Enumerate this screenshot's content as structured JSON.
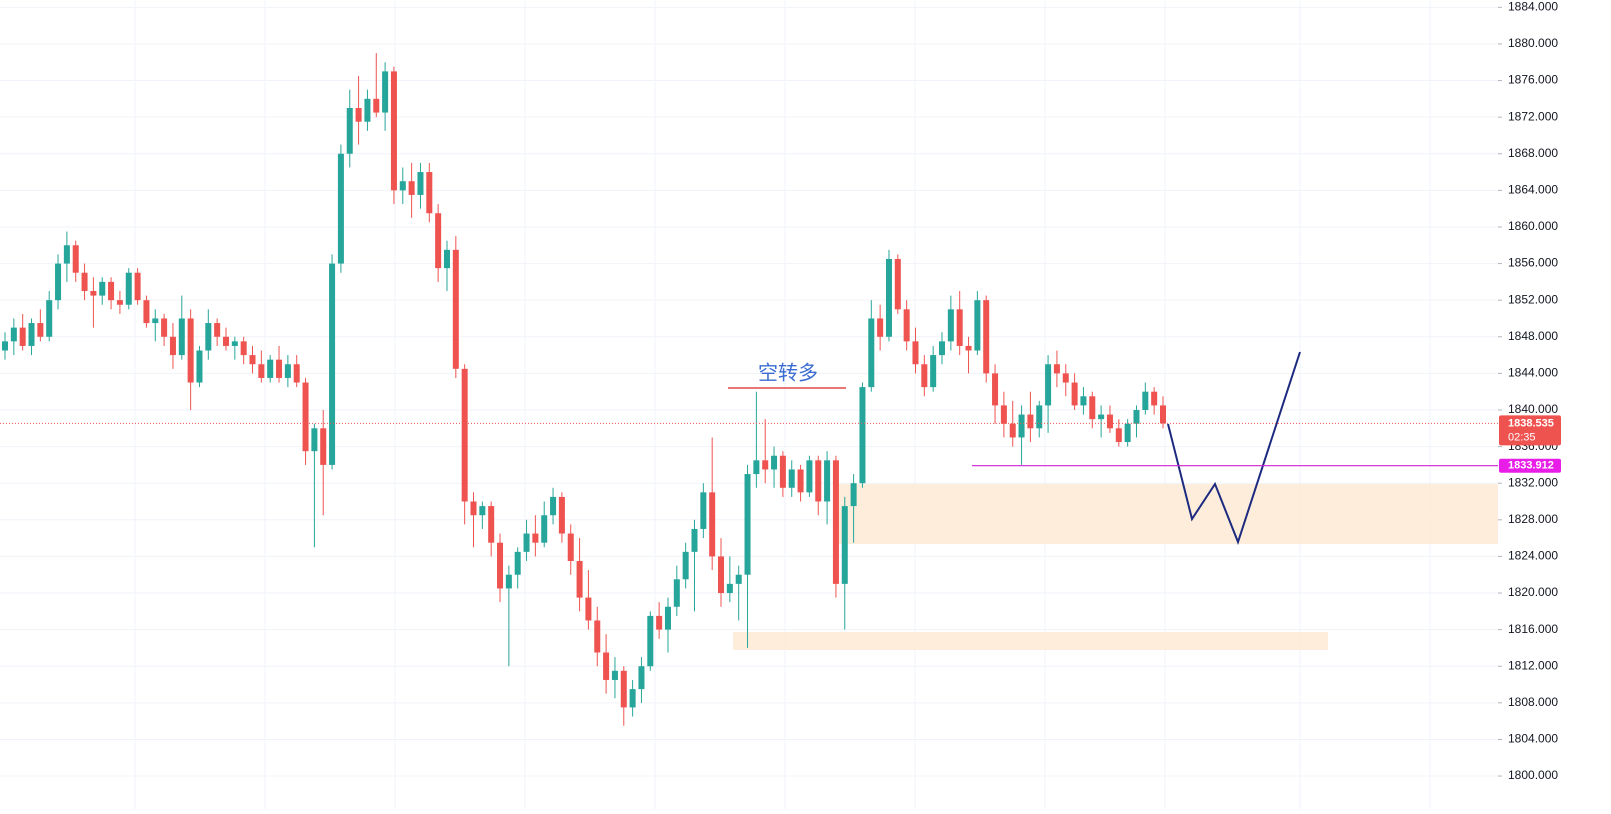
{
  "chart_data": {
    "type": "candlestick",
    "annotation": "空转多",
    "last_price": 1838.535,
    "countdown": "02:35",
    "marked_level": 1833.912,
    "up_color": "#26a69a",
    "down_color": "#ef5350",
    "ylim": [
      1796.4,
      1884.8
    ],
    "yticks": [
      {
        "value": 1800,
        "label": "1800.000"
      },
      {
        "value": 1804,
        "label": "1804.000"
      },
      {
        "value": 1808,
        "label": "1808.000"
      },
      {
        "value": 1812,
        "label": "1812.000"
      },
      {
        "value": 1816,
        "label": "1816.000"
      },
      {
        "value": 1820,
        "label": "1820.000"
      },
      {
        "value": 1824,
        "label": "1824.000"
      },
      {
        "value": 1828,
        "label": "1828.000"
      },
      {
        "value": 1832,
        "label": "1832.000"
      },
      {
        "value": 1836,
        "label": "1836.000"
      },
      {
        "value": 1840,
        "label": "1840.000"
      },
      {
        "value": 1844,
        "label": "1844.000"
      },
      {
        "value": 1848,
        "label": "1848.000"
      },
      {
        "value": 1852,
        "label": "1852.000"
      },
      {
        "value": 1856,
        "label": "1856.000"
      },
      {
        "value": 1860,
        "label": "1860.000"
      },
      {
        "value": 1864,
        "label": "1864.000"
      },
      {
        "value": 1868,
        "label": "1868.000"
      },
      {
        "value": 1872,
        "label": "1872.000"
      },
      {
        "value": 1876,
        "label": "1876.000"
      },
      {
        "value": 1880,
        "label": "1880.000"
      },
      {
        "value": 1884,
        "label": "1884.000"
      }
    ],
    "grid": true,
    "open": [
      1846.5,
      1847.5,
      1849,
      1847,
      1849.5,
      1848,
      1852,
      1856,
      1858,
      1855,
      1853,
      1852.5,
      1854,
      1852,
      1851.5,
      1855,
      1852,
      1849.5,
      1850,
      1848,
      1846,
      1850,
      1843,
      1846.5,
      1849.5,
      1848,
      1847,
      1847.5,
      1846,
      1845,
      1843.5,
      1845.5,
      1843.5,
      1845,
      1843,
      1835.5,
      1838,
      1834,
      1856,
      1868,
      1873,
      1871.5,
      1874,
      1872.5,
      1877,
      1864,
      1865,
      1863.5,
      1866,
      1861.5,
      1855.5,
      1857.5,
      1844.5,
      1830,
      1828.5,
      1829.5,
      1825.5,
      1820.5,
      1822,
      1824.5,
      1826.5,
      1825.5,
      1828.5,
      1830.5,
      1826.5,
      1823.5,
      1819.5,
      1817,
      1813.5,
      1810.5,
      1811.5,
      1807.5,
      1809.5,
      1812,
      1817.5,
      1816,
      1818.5,
      1821.5,
      1824.5,
      1827,
      1831,
      1824,
      1820,
      1821,
      1822,
      1833,
      1834.5,
      1833.5,
      1835,
      1831.5,
      1833.5,
      1831,
      1834.5,
      1830,
      1834.5,
      1821,
      1829.5,
      1832,
      1842.5,
      1850,
      1848,
      1856.5,
      1851,
      1847.5,
      1845,
      1842.5,
      1846,
      1847.5,
      1851,
      1847,
      1846.5,
      1852,
      1844,
      1840.5,
      1838.5,
      1837,
      1839.5,
      1838,
      1840.5,
      1845,
      1844,
      1843,
      1840.5,
      1841.5,
      1839,
      1839.5,
      1838,
      1836.5,
      1838.5,
      1840,
      1842,
      1840.5
    ],
    "high": [
      1848.5,
      1850,
      1850.5,
      1850,
      1851,
      1853,
      1857,
      1859.5,
      1858.5,
      1856,
      1854.5,
      1854.5,
      1854.5,
      1853,
      1855.5,
      1855.5,
      1852.5,
      1851,
      1850.5,
      1849.5,
      1852.5,
      1851,
      1847,
      1851,
      1850,
      1849,
      1848,
      1848,
      1847,
      1846.5,
      1846,
      1847,
      1846,
      1846,
      1843.5,
      1838.5,
      1840,
      1857,
      1869,
      1875,
      1876.5,
      1875,
      1879,
      1878,
      1877.5,
      1866.5,
      1867,
      1867,
      1867,
      1862.5,
      1858.5,
      1859,
      1845,
      1831,
      1830,
      1830,
      1826.5,
      1823,
      1825,
      1828,
      1828.5,
      1830,
      1831.5,
      1831,
      1827.5,
      1826,
      1822.5,
      1818.5,
      1815.5,
      1813,
      1812,
      1810.5,
      1813,
      1818,
      1819,
      1819.5,
      1823,
      1825.5,
      1828,
      1832,
      1837,
      1826,
      1824,
      1823,
      1834,
      1842,
      1839,
      1836,
      1835.5,
      1834.5,
      1834,
      1835,
      1835,
      1835.5,
      1835,
      1830.5,
      1833,
      1843,
      1852,
      1851.5,
      1857.5,
      1857,
      1852,
      1849,
      1846,
      1847,
      1848.5,
      1852.5,
      1853,
      1848,
      1853,
      1852.5,
      1845,
      1842,
      1841,
      1840.5,
      1842,
      1841,
      1846,
      1846.5,
      1845,
      1844,
      1842.5,
      1842,
      1840.5,
      1840.5,
      1839,
      1839,
      1840.5,
      1843,
      1842.5,
      1841.5
    ],
    "low": [
      1845.5,
      1846,
      1846.5,
      1846,
      1847.5,
      1847.5,
      1851,
      1854,
      1854,
      1852,
      1849,
      1851.5,
      1851,
      1850.5,
      1851,
      1851.5,
      1849,
      1847.5,
      1847,
      1844.5,
      1845.5,
      1840,
      1842.5,
      1845.5,
      1847,
      1846.5,
      1845.5,
      1845,
      1844,
      1843,
      1843,
      1843,
      1842.5,
      1842.5,
      1834,
      1825,
      1828.5,
      1833.5,
      1855,
      1866.5,
      1869,
      1870.5,
      1872,
      1870.5,
      1862.5,
      1862.5,
      1861,
      1862,
      1860.5,
      1854,
      1853,
      1843.5,
      1827.5,
      1825,
      1827,
      1824,
      1819,
      1812,
      1820.5,
      1823.5,
      1824,
      1825,
      1827.5,
      1825.5,
      1822,
      1818,
      1816,
      1812,
      1809,
      1808.5,
      1805.5,
      1806.5,
      1808,
      1811.5,
      1815,
      1813.5,
      1817.5,
      1820.5,
      1818,
      1826,
      1822.5,
      1818.5,
      1819,
      1817,
      1814,
      1831.5,
      1832,
      1831.5,
      1830.5,
      1830.5,
      1830,
      1830.5,
      1828.5,
      1827.5,
      1819.5,
      1816,
      1825.5,
      1831.5,
      1842,
      1846.5,
      1847.5,
      1850.5,
      1846.5,
      1844,
      1841.5,
      1842,
      1845,
      1846.5,
      1846,
      1844,
      1846,
      1843,
      1838.5,
      1837,
      1836,
      1834,
      1836.5,
      1837,
      1837.5,
      1842.5,
      1841.5,
      1840,
      1839.5,
      1838,
      1837,
      1837.5,
      1836,
      1836,
      1837,
      1839.5,
      1839.5,
      1838
    ],
    "close": [
      1847.5,
      1849,
      1847,
      1849.5,
      1848,
      1852,
      1856,
      1858,
      1855,
      1853,
      1852.5,
      1854,
      1852,
      1851.5,
      1855,
      1852,
      1849.5,
      1850,
      1848,
      1846,
      1850,
      1843,
      1846.5,
      1849.5,
      1848,
      1847,
      1847.5,
      1846,
      1845,
      1843.5,
      1845.5,
      1843.5,
      1845,
      1843,
      1835.5,
      1838,
      1834,
      1856,
      1868,
      1873,
      1871.5,
      1874,
      1872.5,
      1877,
      1864,
      1865,
      1863.5,
      1866,
      1861.5,
      1855.5,
      1857.5,
      1844.5,
      1830,
      1828.5,
      1829.5,
      1825.5,
      1820.5,
      1822,
      1824.5,
      1826.5,
      1825.5,
      1828.5,
      1830.5,
      1826.5,
      1823.5,
      1819.5,
      1817,
      1813.5,
      1810.5,
      1811.5,
      1807.5,
      1809.5,
      1812,
      1817.5,
      1816,
      1818.5,
      1821.5,
      1824.5,
      1827,
      1831,
      1824,
      1820,
      1821,
      1822,
      1833,
      1834.5,
      1833.5,
      1835,
      1831.5,
      1833.5,
      1831,
      1834.5,
      1830,
      1834.5,
      1821,
      1829.5,
      1832,
      1842.5,
      1850,
      1848,
      1856.5,
      1851,
      1847.5,
      1845,
      1842.5,
      1846,
      1847.5,
      1851,
      1847,
      1846.5,
      1852,
      1844,
      1840.5,
      1838.5,
      1837,
      1839.5,
      1838,
      1840.5,
      1845,
      1844,
      1843,
      1840.5,
      1841.5,
      1839,
      1839.5,
      1838,
      1836.5,
      1838.5,
      1840,
      1842,
      1840.5,
      1838.535
    ]
  }
}
